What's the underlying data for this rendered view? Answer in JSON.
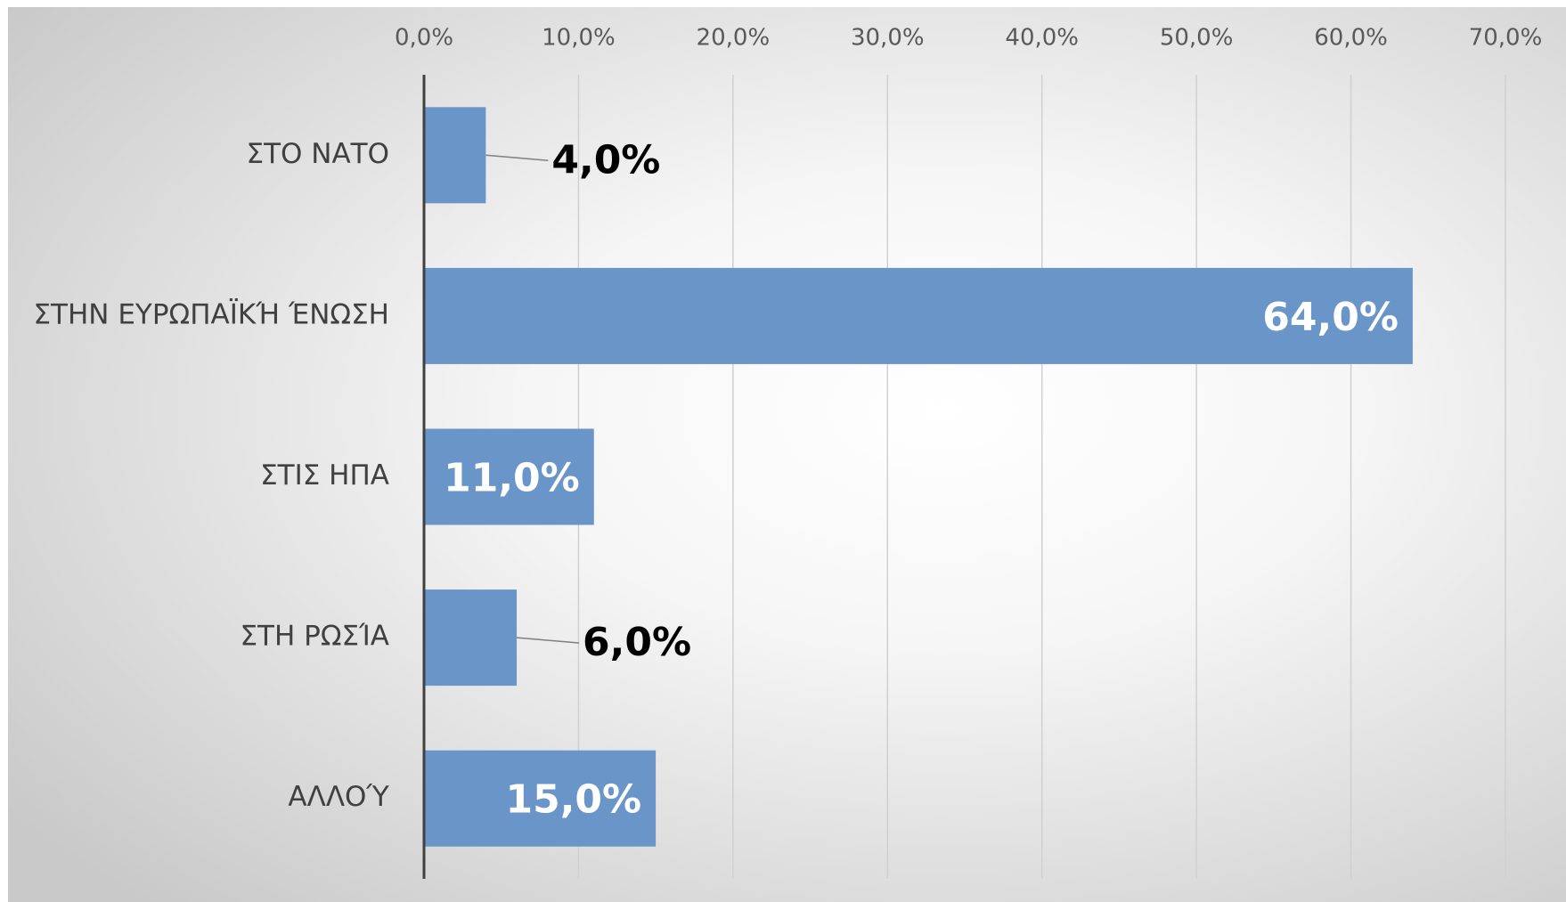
{
  "chart_data": {
    "type": "bar",
    "orientation": "horizontal",
    "categories": [
      "ΣΤΟ ΝΑΤΟ",
      "ΣΤΗΝ ΕΥΡΩΠΑΪΚΉ ΈΝΩΣΗ",
      "ΣΤΙΣ ΗΠΑ",
      "ΣΤΗ ΡΩΣΊΑ",
      "ΑΛΛΟΎ"
    ],
    "values": [
      4,
      64,
      11,
      6,
      15
    ],
    "value_labels": [
      "4,0%",
      "64,0%",
      "11,0%",
      "6,0%",
      "15,0%"
    ],
    "color": "#6a95c8",
    "xlim": [
      0,
      70
    ],
    "xticks": [
      {
        "value": 0,
        "label": "0,0%"
      },
      {
        "value": 10,
        "label": "10,0%"
      },
      {
        "value": 20,
        "label": "20,0%"
      },
      {
        "value": 30,
        "label": "30,0%"
      },
      {
        "value": 40,
        "label": "40,0%"
      },
      {
        "value": 50,
        "label": "50,0%"
      },
      {
        "value": 60,
        "label": "60,0%"
      },
      {
        "value": 70,
        "label": "70,0%"
      }
    ],
    "grid": true
  }
}
